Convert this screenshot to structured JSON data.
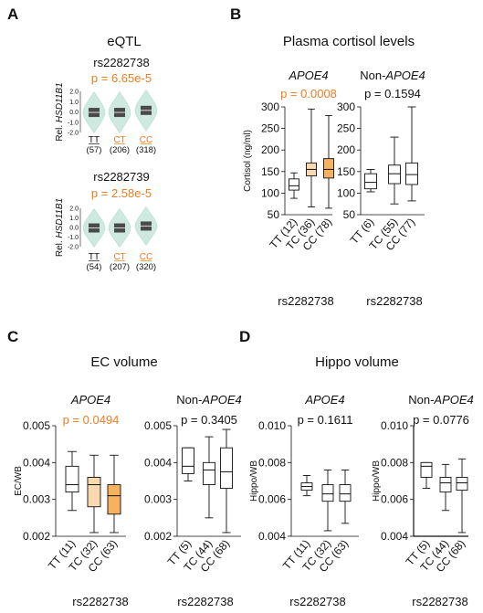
{
  "colors": {
    "accent_orange": "#ef7d22",
    "box_light_orange": "#fbd9b0",
    "box_orange": "#f7b15f",
    "violin_fill": "#cde9e0",
    "eqtl_bar": "#4a4a4a"
  },
  "panels": {
    "A": {
      "letter": "A",
      "title": "eQTL",
      "ylabel_prefix": "Rel. ",
      "ylabel_gene": "HSD11B1",
      "rows": [
        {
          "snp": "rs2282738",
          "pvalue": "p = 6.65e-5",
          "yticks": [
            "2.0",
            "1.0",
            "0.0",
            "-1.0",
            "-2.0"
          ],
          "genotypes": [
            "TT",
            "CT",
            "CC"
          ],
          "counts": [
            "(57)",
            "(206)",
            "(318)"
          ],
          "medians": [
            -0.05,
            -0.05,
            0.15
          ]
        },
        {
          "snp": "rs2282739",
          "pvalue": "p = 2.58e-5",
          "yticks": [
            "2.0",
            "1.0",
            "0.0",
            "-1.0",
            "-2.0"
          ],
          "genotypes": [
            "TT",
            "CT",
            "CC"
          ],
          "counts": [
            "(54)",
            "(207)",
            "(320)"
          ],
          "medians": [
            -0.05,
            -0.05,
            0.15
          ]
        }
      ]
    },
    "B": {
      "letter": "B",
      "title": "Plasma cortisol levels",
      "ylabel": "Cortisol (ng/ml)",
      "xlabel": "rs2282738"
    },
    "C": {
      "letter": "C",
      "title": "EC volume",
      "ylabel": "EC/WB",
      "xlabel": "rs2282738"
    },
    "D": {
      "letter": "D",
      "title": "Hippo volume",
      "ylabel": "Hippo/WB",
      "xlabel": "rs2282738"
    }
  },
  "chart_data": [
    {
      "panel": "B-left",
      "type": "box",
      "title": "APOE4",
      "title_italic": true,
      "pvalue": "p = 0.0008",
      "pvalue_orange": true,
      "ylabel": "Cortisol (ng/ml)",
      "xlabel": "rs2282738",
      "ylim": [
        50,
        300
      ],
      "yticks": [
        50,
        100,
        150,
        200,
        250,
        300
      ],
      "categories": [
        "TT (12)",
        "TC (36)",
        "CC (78)"
      ],
      "boxes": [
        {
          "min": 88,
          "q1": 107,
          "median": 117,
          "q3": 133,
          "max": 147,
          "fill": "white"
        },
        {
          "min": 68,
          "q1": 140,
          "median": 155,
          "q3": 170,
          "max": 295,
          "fill": "light-orange"
        },
        {
          "min": 65,
          "q1": 135,
          "median": 155,
          "q3": 180,
          "max": 280,
          "fill": "orange"
        }
      ]
    },
    {
      "panel": "B-right",
      "type": "box",
      "title": "Non-APOE4",
      "title_prefix": "Non-",
      "title_italic_part": "APOE4",
      "pvalue": "p = 0.1594",
      "pvalue_orange": false,
      "ylabel": "",
      "xlabel": "rs2282738",
      "ylim": [
        50,
        300
      ],
      "yticks": [
        50,
        100,
        150,
        200,
        250,
        300
      ],
      "categories": [
        "TT (6)",
        "TC (55)",
        "CC (77)"
      ],
      "boxes": [
        {
          "min": 103,
          "q1": 110,
          "median": 125,
          "q3": 145,
          "max": 155,
          "fill": "white"
        },
        {
          "min": 75,
          "q1": 122,
          "median": 145,
          "q3": 165,
          "max": 230,
          "fill": "white"
        },
        {
          "min": 82,
          "q1": 120,
          "median": 143,
          "q3": 170,
          "max": 300,
          "fill": "white"
        }
      ]
    },
    {
      "panel": "C-left",
      "type": "box",
      "title": "APOE4",
      "title_italic": true,
      "pvalue": "p = 0.0494",
      "pvalue_orange": true,
      "ylabel": "EC/WB",
      "xlabel": "rs2282738",
      "ylim": [
        0.002,
        0.005
      ],
      "yticks": [
        0.002,
        0.003,
        0.004,
        0.005
      ],
      "ytick_labels": [
        "0.002",
        "0.003",
        "0.004",
        "0.005"
      ],
      "categories": [
        "TT (11)",
        "TC (32)",
        "CC (63)"
      ],
      "boxes": [
        {
          "min": 0.0027,
          "q1": 0.0032,
          "median": 0.0034,
          "q3": 0.0039,
          "max": 0.0043,
          "fill": "white"
        },
        {
          "min": 0.0021,
          "q1": 0.0028,
          "median": 0.0034,
          "q3": 0.0036,
          "max": 0.0042,
          "fill": "light-orange"
        },
        {
          "min": 0.0021,
          "q1": 0.0026,
          "median": 0.0031,
          "q3": 0.0034,
          "max": 0.0042,
          "fill": "orange"
        }
      ]
    },
    {
      "panel": "C-right",
      "type": "box",
      "title": "Non-APOE4",
      "title_prefix": "Non-",
      "title_italic_part": "APOE4",
      "pvalue": "p = 0.3405",
      "pvalue_orange": false,
      "ylabel": "",
      "xlabel": "rs2282738",
      "ylim": [
        0.002,
        0.005
      ],
      "yticks": [
        0.002,
        0.003,
        0.004,
        0.005
      ],
      "ytick_labels": [
        "0.002",
        "0.003",
        "0.004",
        "0.005"
      ],
      "categories": [
        "TT (5)",
        "TC (44)",
        "CC (68)"
      ],
      "boxes": [
        {
          "min": 0.0035,
          "q1": 0.0037,
          "median": 0.0039,
          "q3": 0.0044,
          "max": 0.0044,
          "fill": "white"
        },
        {
          "min": 0.0025,
          "q1": 0.0034,
          "median": 0.0038,
          "q3": 0.004,
          "max": 0.0047,
          "fill": "white"
        },
        {
          "min": 0.0021,
          "q1": 0.0033,
          "median": 0.00375,
          "q3": 0.0044,
          "max": 0.0049,
          "fill": "white"
        }
      ]
    },
    {
      "panel": "D-left",
      "type": "box",
      "title": "APOE4",
      "title_italic": true,
      "pvalue": "p = 0.1611",
      "pvalue_orange": false,
      "ylabel": "Hippo/WB",
      "xlabel": "rs2282738",
      "ylim": [
        0.004,
        0.01
      ],
      "yticks": [
        0.004,
        0.006,
        0.008,
        0.01
      ],
      "ytick_labels": [
        "0.004",
        "0.006",
        "0.008",
        "0.010"
      ],
      "categories": [
        "TT (11)",
        "TC (32)",
        "CC (63)"
      ],
      "boxes": [
        {
          "min": 0.0062,
          "q1": 0.0065,
          "median": 0.0067,
          "q3": 0.0069,
          "max": 0.0073,
          "fill": "white"
        },
        {
          "min": 0.0043,
          "q1": 0.0059,
          "median": 0.0063,
          "q3": 0.0068,
          "max": 0.0076,
          "fill": "white"
        },
        {
          "min": 0.0047,
          "q1": 0.0059,
          "median": 0.0063,
          "q3": 0.0068,
          "max": 0.0076,
          "fill": "white"
        }
      ]
    },
    {
      "panel": "D-right",
      "type": "box",
      "title": "Non-APOE4",
      "title_prefix": "Non-",
      "title_italic_part": "APOE4",
      "pvalue": "p = 0.0776",
      "pvalue_orange": false,
      "ylabel": "Hippo/WB",
      "xlabel": "rs2282738",
      "ylim": [
        0.004,
        0.01
      ],
      "yticks": [
        0.004,
        0.006,
        0.008,
        0.01
      ],
      "ytick_labels": [
        "0.004",
        "0.006",
        "0.008",
        "0.010"
      ],
      "categories": [
        "TT (5)",
        "TC (44)",
        "CC (68)"
      ],
      "boxes": [
        {
          "min": 0.0066,
          "q1": 0.0072,
          "median": 0.0078,
          "q3": 0.008,
          "max": 0.008,
          "fill": "white"
        },
        {
          "min": 0.0054,
          "q1": 0.0064,
          "median": 0.0069,
          "q3": 0.0072,
          "max": 0.0079,
          "fill": "white"
        },
        {
          "min": 0.0042,
          "q1": 0.0065,
          "median": 0.0069,
          "q3": 0.0072,
          "max": 0.0082,
          "fill": "white"
        }
      ]
    }
  ]
}
